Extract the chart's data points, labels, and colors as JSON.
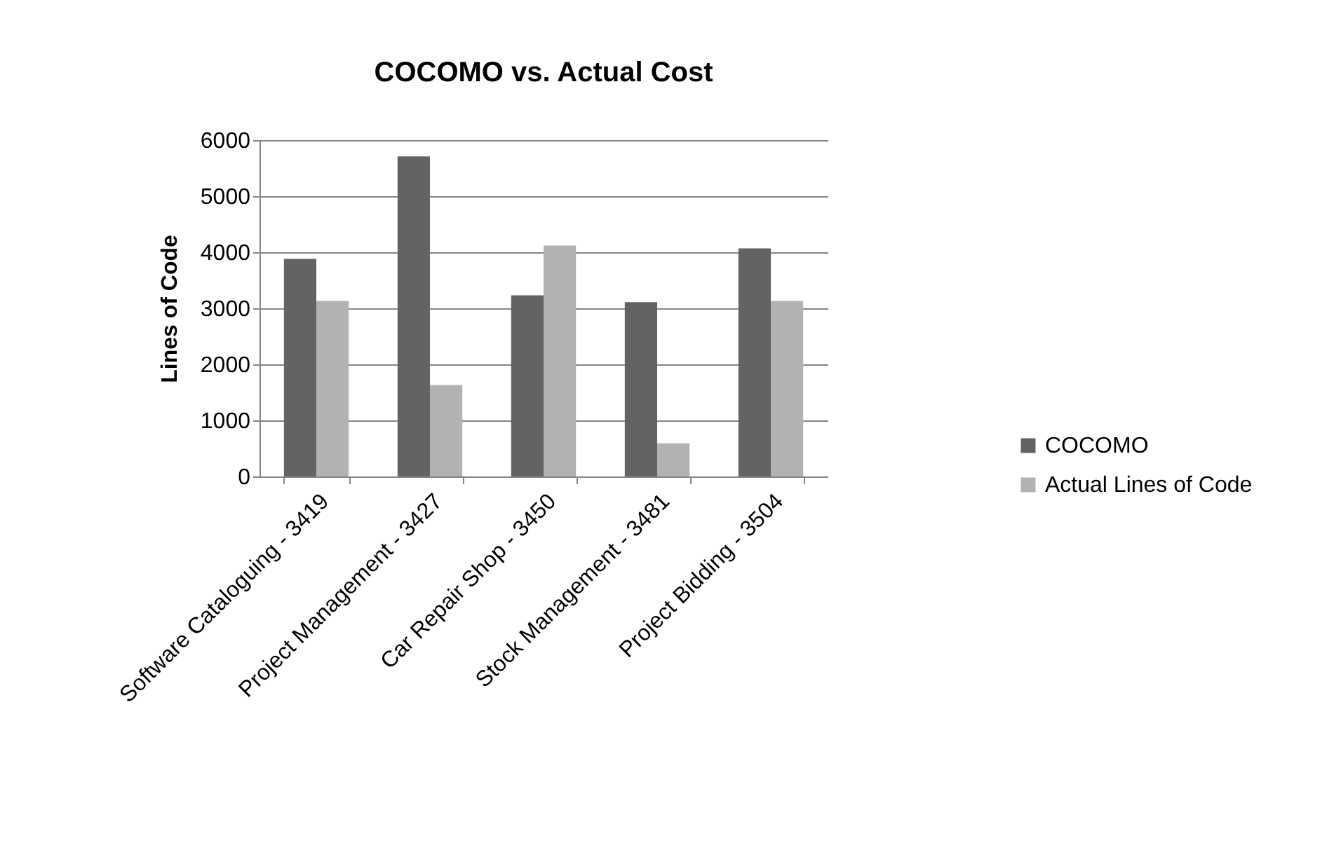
{
  "chart_data": {
    "type": "bar",
    "title": "COCOMO vs. Actual Cost",
    "ylabel": "Lines of Code",
    "categories": [
      "Software Cataloguing - 3419",
      "Project Management - 3427",
      "Car Repair Shop - 3450",
      "Stock Management - 3481",
      "Project Bidding - 3504"
    ],
    "series": [
      {
        "name": "COCOMO",
        "color": "#636363",
        "values": [
          3880,
          5710,
          3230,
          3110,
          4070
        ]
      },
      {
        "name": "Actual Lines of Code",
        "color": "#b2b2b2",
        "values": [
          3130,
          1630,
          4120,
          590,
          3130
        ]
      }
    ],
    "ylim": [
      0,
      6000
    ],
    "yticks": [
      0,
      1000,
      2000,
      3000,
      4000,
      5000,
      6000
    ],
    "grid": "y",
    "legend": "right"
  }
}
